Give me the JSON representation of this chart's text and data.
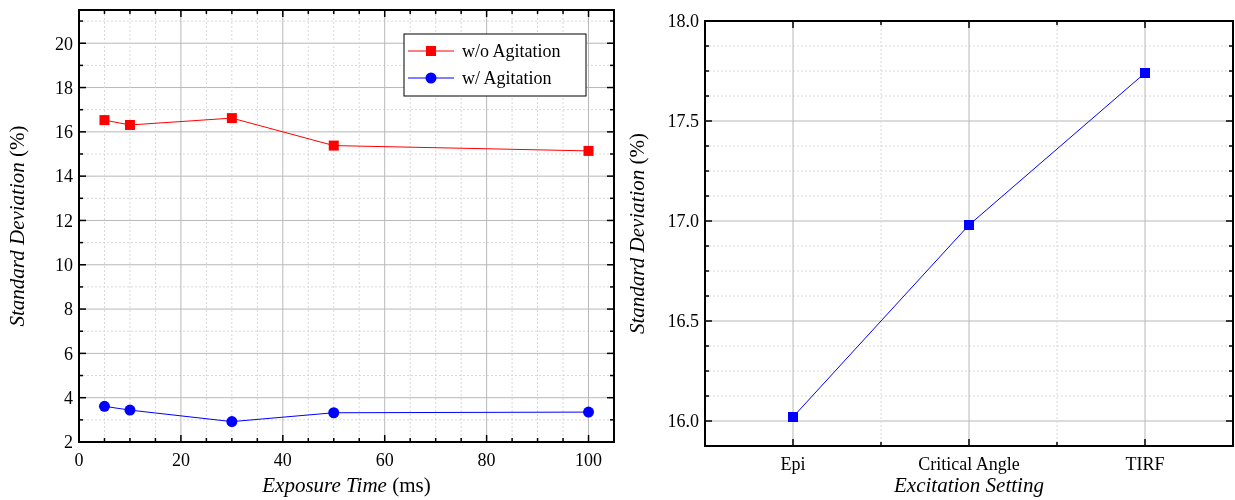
{
  "chart_data": [
    {
      "type": "line",
      "xlabel": "Exposure Time (ms)",
      "ylabel": "Standard Deviation (%)",
      "x": [
        5,
        10,
        30,
        50,
        100
      ],
      "series": [
        {
          "name": "w/o Agitation",
          "color": "#ff0000",
          "marker": "square",
          "values": [
            16.53,
            16.31,
            16.62,
            15.38,
            15.14
          ]
        },
        {
          "name": "w/ Agitation",
          "color": "#0000ff",
          "marker": "circle",
          "values": [
            3.61,
            3.44,
            2.92,
            3.32,
            3.35
          ]
        }
      ],
      "xlim": [
        0,
        105
      ],
      "xticks": [
        0,
        {
          "value": 5,
          "label": null
        },
        {
          "value": 10,
          "label": null
        },
        {
          "value": 15,
          "label": null
        },
        20,
        {
          "value": 25,
          "label": null
        },
        {
          "value": 30,
          "label": null
        },
        {
          "value": 35,
          "label": null
        },
        40,
        {
          "value": 45,
          "label": null
        },
        {
          "value": 50,
          "label": null
        },
        {
          "value": 55,
          "label": null
        },
        60,
        {
          "value": 65,
          "label": null
        },
        {
          "value": 70,
          "label": null
        },
        {
          "value": 75,
          "label": null
        },
        80,
        {
          "value": 85,
          "label": null
        },
        {
          "value": 90,
          "label": null
        },
        {
          "value": 95,
          "label": null
        },
        100
      ],
      "ylim": [
        2,
        21.5
      ],
      "yticks": [
        2,
        {
          "value": 3,
          "label": null
        },
        4,
        {
          "value": 5,
          "label": null
        },
        6,
        {
          "value": 7,
          "label": null
        },
        8,
        {
          "value": 9,
          "label": null
        },
        10,
        {
          "value": 11,
          "label": null
        },
        12,
        {
          "value": 13,
          "label": null
        },
        14,
        {
          "value": 15,
          "label": null
        },
        16,
        {
          "value": 17,
          "label": null
        },
        18,
        {
          "value": 19,
          "label": null
        },
        20,
        {
          "value": 21,
          "label": null
        }
      ],
      "grid": true,
      "legend": "top right"
    },
    {
      "type": "line",
      "xlabel": "Excitation Setting",
      "ylabel": "Standard Deviation (%)",
      "categories": [
        "Epi",
        "Critical Angle",
        "TIRF"
      ],
      "series": [
        {
          "color": "#0000ff",
          "marker": "square",
          "values": [
            16.02,
            16.98,
            17.74
          ]
        }
      ],
      "ylim": [
        15.875,
        18.0
      ],
      "yticks": [
        {
          "value": 15.875,
          "label": null
        },
        {
          "value": 16.0,
          "label": "16.0"
        },
        {
          "value": 16.125,
          "label": null
        },
        {
          "value": 16.25,
          "label": null
        },
        {
          "value": 16.375,
          "label": null
        },
        16.5,
        {
          "value": 16.625,
          "label": null
        },
        {
          "value": 16.75,
          "label": null
        },
        {
          "value": 16.875,
          "label": null
        },
        {
          "value": 17.0,
          "label": "17.0"
        },
        {
          "value": 17.125,
          "label": null
        },
        {
          "value": 17.25,
          "label": null
        },
        {
          "value": 17.375,
          "label": null
        },
        17.5,
        {
          "value": 17.625,
          "label": null
        },
        {
          "value": 17.75,
          "label": null
        },
        {
          "value": 17.875,
          "label": null
        },
        {
          "value": 18.0,
          "label": "18.0"
        }
      ],
      "grid": true
    }
  ]
}
